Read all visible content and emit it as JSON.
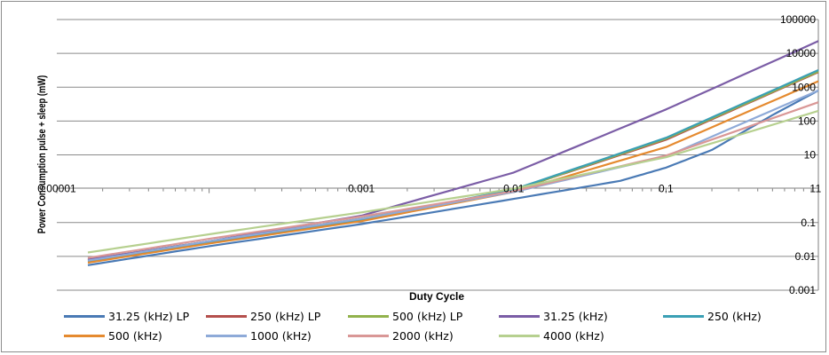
{
  "chart_data": {
    "type": "line",
    "xlabel": "Duty Cycle",
    "ylabel": "Power Consumption pulse + sleep (mW)",
    "x_scale": "log",
    "y_scale": "log",
    "xlim": [
      1e-05,
      1
    ],
    "ylim": [
      0.001,
      100000
    ],
    "x_ticks": [
      "0.00001",
      "0.001",
      "0.01",
      "0.1",
      "1"
    ],
    "y_ticks": [
      "100000",
      "10000",
      "1000",
      "100",
      "10",
      "1",
      "0.1",
      "0.01",
      "0.001"
    ],
    "grid": "horizontal",
    "legend_position": "bottom",
    "series": [
      {
        "name": "31.25 (kHz) LP",
        "color": "#4a7ab5",
        "x": [
          1.6e-05,
          0.0001,
          0.001,
          0.01,
          0.05,
          0.1,
          0.2,
          0.5,
          1
        ],
        "y": [
          0.0055,
          0.02,
          0.09,
          0.5,
          1.7,
          4.2,
          14,
          150,
          800
        ]
      },
      {
        "name": "250 (kHz) LP",
        "color": "#b5504d",
        "x": [
          1.6e-05,
          0.0001,
          0.001,
          0.01,
          0.1,
          1
        ],
        "y": [
          0.0075,
          0.027,
          0.13,
          0.9,
          28,
          2800
        ]
      },
      {
        "name": "500 (kHz) LP",
        "color": "#92b24d",
        "x": [
          1.6e-05,
          0.0001,
          0.001,
          0.01,
          0.1,
          1
        ],
        "y": [
          0.008,
          0.028,
          0.13,
          0.9,
          30,
          2900
        ]
      },
      {
        "name": "31.25 (kHz)",
        "color": "#7b5da6",
        "x": [
          1.6e-05,
          0.0001,
          0.001,
          0.01,
          0.1,
          1
        ],
        "y": [
          0.008,
          0.028,
          0.16,
          3,
          220,
          23000
        ]
      },
      {
        "name": "250 (kHz)",
        "color": "#3ba0b5",
        "x": [
          1.6e-05,
          0.0001,
          0.001,
          0.01,
          0.1,
          1
        ],
        "y": [
          0.007,
          0.026,
          0.12,
          0.95,
          32,
          3200
        ]
      },
      {
        "name": "500 (kHz)",
        "color": "#e58a2f",
        "x": [
          1.6e-05,
          0.0001,
          0.001,
          0.01,
          0.1,
          1
        ],
        "y": [
          0.0065,
          0.024,
          0.11,
          0.8,
          17,
          1500
        ]
      },
      {
        "name": "1000 (kHz)",
        "color": "#8eaad8",
        "x": [
          1.6e-05,
          0.0001,
          0.001,
          0.01,
          0.1,
          1
        ],
        "y": [
          0.0075,
          0.028,
          0.13,
          0.8,
          9,
          800
        ]
      },
      {
        "name": "2000 (kHz)",
        "color": "#d99796",
        "x": [
          1.6e-05,
          0.0001,
          0.001,
          0.01,
          0.1,
          1
        ],
        "y": [
          0.009,
          0.033,
          0.15,
          0.85,
          9.5,
          360
        ]
      },
      {
        "name": "4000 (kHz)",
        "color": "#b6d08f",
        "x": [
          1.6e-05,
          0.0001,
          0.001,
          0.01,
          0.1,
          1
        ],
        "y": [
          0.013,
          0.045,
          0.2,
          1,
          8.5,
          200
        ]
      }
    ]
  }
}
